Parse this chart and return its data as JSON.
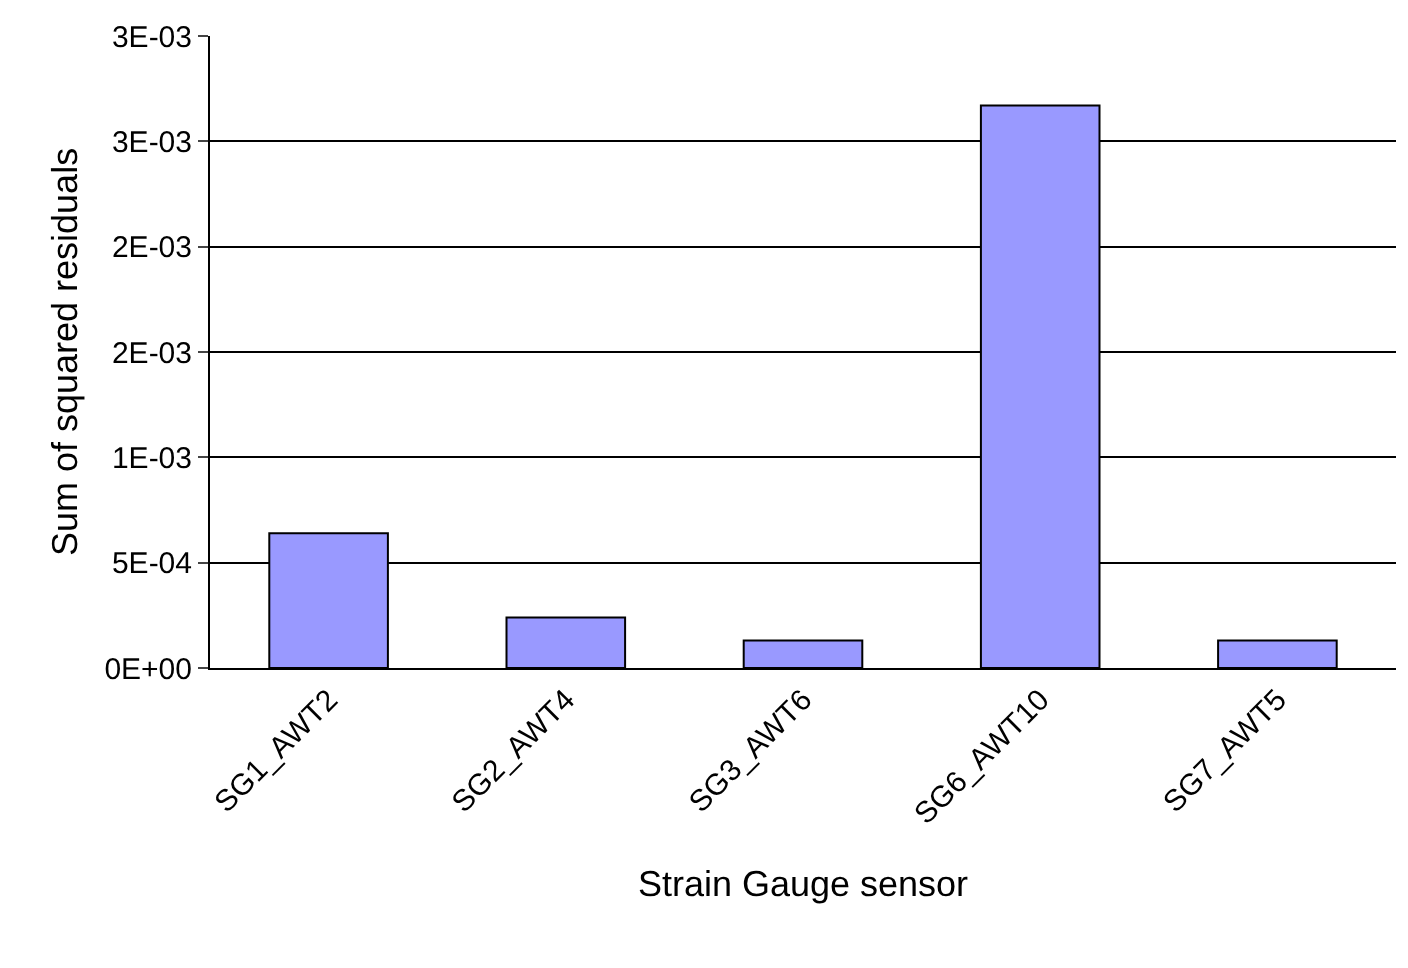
{
  "chart_data": {
    "type": "bar",
    "xlabel": "Strain Gauge sensor",
    "ylabel": "Sum of squared residuals",
    "categories": [
      "SG1_AWT2",
      "SG2_AWT4",
      "SG3_AWT6",
      "SG6_AWT10",
      "SG7_AWT5"
    ],
    "values": [
      0.00064,
      0.00024,
      0.00013,
      0.00267,
      0.00013
    ],
    "color": "#9999ff",
    "ylim": [
      0,
      0.003
    ],
    "yticks": [
      {
        "value": 0,
        "label": "0E+00"
      },
      {
        "value": 0.0005,
        "label": "5E-04"
      },
      {
        "value": 0.001,
        "label": "1E-03"
      },
      {
        "value": 0.0015,
        "label": "2E-03"
      },
      {
        "value": 0.002,
        "label": "2E-03"
      },
      {
        "value": 0.0025,
        "label": "3E-03"
      },
      {
        "value": 0.003,
        "label": "3E-03"
      }
    ],
    "grid": "y"
  }
}
